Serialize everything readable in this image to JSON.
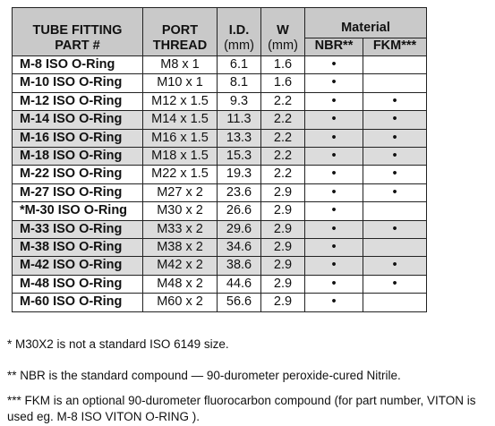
{
  "table": {
    "header": {
      "part": [
        "TUBE FITTING",
        "PART #"
      ],
      "port": [
        "PORT",
        "THREAD"
      ],
      "id": [
        "I.D.",
        "(mm)"
      ],
      "w": [
        "W",
        "(mm)"
      ],
      "material": "Material",
      "nbr": "NBR**",
      "fkm": "FKM***"
    },
    "rows": [
      [
        "M-8 ISO O-Ring",
        "M8 x 1",
        "6.1",
        "1.6",
        "•",
        null
      ],
      [
        "M-10 ISO O-Ring",
        "M10 x 1",
        "8.1",
        "1.6",
        "•",
        null
      ],
      [
        "M-12 ISO O-Ring",
        "M12 x 1.5",
        "9.3",
        "2.2",
        "•",
        "•"
      ],
      [
        "M-14 ISO O-Ring",
        "M14 x 1.5",
        "11.3",
        "2.2",
        "•",
        "•"
      ],
      [
        "M-16 ISO O-Ring",
        "M16 x 1.5",
        "13.3",
        "2.2",
        "•",
        "•"
      ],
      [
        "M-18 ISO O-Ring",
        "M18 x 1.5",
        "15.3",
        "2.2",
        "•",
        "•"
      ],
      [
        "M-22 ISO O-Ring",
        "M22 x 1.5",
        "19.3",
        "2.2",
        "•",
        "•"
      ],
      [
        "M-27 ISO O-Ring",
        "M27 x 2",
        "23.6",
        "2.9",
        "•",
        "•"
      ],
      [
        "*M-30 ISO O-Ring",
        "M30 x 2",
        "26.6",
        "2.9",
        "•",
        null
      ],
      [
        "M-33 ISO O-Ring",
        "M33 x 2",
        "29.6",
        "2.9",
        "•",
        "•"
      ],
      [
        "M-38 ISO O-Ring",
        "M38 x 2",
        "34.6",
        "2.9",
        "•",
        null
      ],
      [
        "M-42 ISO O-Ring",
        "M42 x 2",
        "38.6",
        "2.9",
        "•",
        "•"
      ],
      [
        "M-48 ISO O-Ring",
        "M48 x 2",
        "44.6",
        "2.9",
        "•",
        "•"
      ],
      [
        "M-60 ISO O-Ring",
        "M60 x 2",
        "56.6",
        "2.9",
        "•",
        null
      ]
    ]
  },
  "notes": [
    "* M30X2 is not a standard ISO 6149 size.",
    "** NBR is the standard compound — 90-durometer peroxide-cured Nitrile.",
    "*** FKM is an optional 90-durometer fluorocarbon compound (for part number, VITON is used eg. M-8 ISO VITON O-RING )."
  ]
}
